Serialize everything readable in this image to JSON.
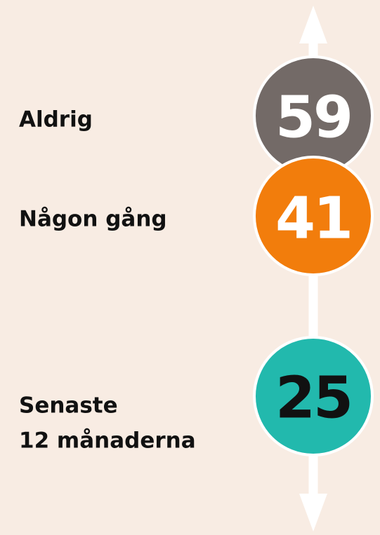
{
  "items": [
    {
      "label_lines": [
        "Aldrig"
      ],
      "value": 59
    },
    {
      "label_lines": [
        "Någon gång"
      ],
      "value": 41
    },
    {
      "label_lines": [
        "Senaste",
        "12 månaderna"
      ],
      "value": 25
    }
  ]
}
